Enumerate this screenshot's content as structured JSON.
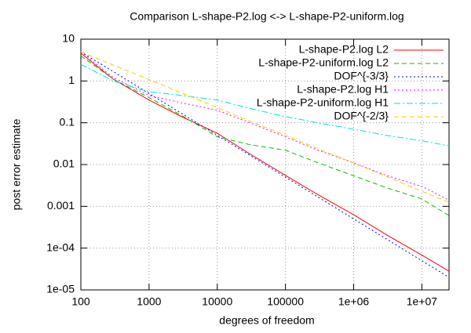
{
  "chart_data": {
    "type": "line",
    "title": "Comparison L-shape-P2.log <-> L-shape-P2-uniform.log",
    "x_label": "degrees of freedom",
    "y_label": "post error estimate",
    "log_x": true,
    "log_y": true,
    "grid": true,
    "legend": "top-right",
    "xlim": [
      100,
      25000000
    ],
    "ylim": [
      1e-05,
      10
    ],
    "xticks": [
      100,
      1000,
      10000,
      100000,
      {
        "value": 1000000,
        "label": "1e+06"
      },
      {
        "value": 10000000,
        "label": "1e+07"
      }
    ],
    "yticks": [
      {
        "value": 1e-05,
        "label": "1e-05"
      },
      {
        "value": 0.0001,
        "label": "1e-04"
      },
      0.001,
      0.01,
      0.1,
      1,
      10
    ],
    "x": [
      100,
      300,
      1000,
      3000,
      10000,
      30000,
      100000,
      300000,
      1000000,
      3000000,
      10000000,
      25000000
    ],
    "series": [
      {
        "name": "L-shape-P2.log L2",
        "color": "#ff0000",
        "dash": "solid",
        "values": [
          4.6,
          1.1,
          0.35,
          0.14,
          0.056,
          0.018,
          0.0055,
          0.0019,
          0.00063,
          0.00021,
          6.8e-05,
          2.8e-05
        ]
      },
      {
        "name": "L-shape-P2-uniform.log L2",
        "color": "#00c000",
        "dash": "dashed",
        "values": [
          4,
          1.1,
          0.4,
          0.15,
          0.046,
          0.03,
          0.022,
          0.011,
          0.0054,
          0.0028,
          0.0015,
          0.0006
        ]
      },
      {
        "name": "DOF^{-3/3}",
        "color": "#0000ff",
        "dash": "dotted",
        "values": [
          5,
          1.67,
          0.5,
          0.167,
          0.05,
          0.0167,
          0.005,
          0.00167,
          0.0005,
          0.000167,
          5e-05,
          2e-05
        ]
      },
      {
        "name": "L-shape-P2.log H1",
        "color": "#ff00ff",
        "dash": "dotted",
        "values": [
          5,
          1.2,
          0.45,
          0.3,
          0.2,
          0.1,
          0.046,
          0.022,
          0.011,
          0.0055,
          0.003,
          0.0014
        ]
      },
      {
        "name": "L-shape-P2-uniform.log H1",
        "color": "#00e0e0",
        "dash": "dash-dot",
        "values": [
          2.5,
          1,
          0.55,
          0.45,
          0.35,
          0.22,
          0.14,
          0.1,
          0.07,
          0.05,
          0.037,
          0.028
        ]
      },
      {
        "name": "DOF^{-2/3}",
        "color": "#f0d000",
        "dash": "dashed",
        "values": [
          5,
          2.4,
          1.08,
          0.52,
          0.23,
          0.11,
          0.05,
          0.024,
          0.0108,
          0.0052,
          0.0023,
          0.00125
        ]
      }
    ]
  }
}
